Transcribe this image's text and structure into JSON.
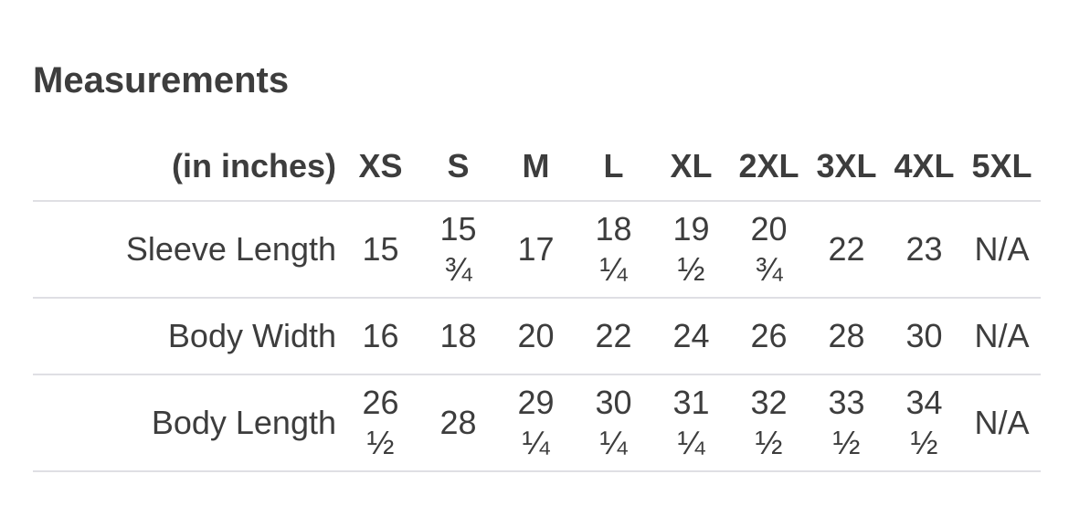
{
  "title": "Measurements",
  "table": {
    "unit_label": "(in inches)",
    "columns": [
      "XS",
      "S",
      "M",
      "L",
      "XL",
      "2XL",
      "3XL",
      "4XL",
      "5XL"
    ],
    "rows": [
      {
        "label": "Sleeve Length",
        "values": [
          "15",
          "15 ¾",
          "17",
          "18 ¼",
          "19 ½",
          "20 ¾",
          "22",
          "23",
          "N/A"
        ]
      },
      {
        "label": "Body Width",
        "values": [
          "16",
          "18",
          "20",
          "22",
          "24",
          "26",
          "28",
          "30",
          "N/A"
        ]
      },
      {
        "label": "Body Length",
        "values": [
          "26 ½",
          "28",
          "29 ¼",
          "30 ¼",
          "31 ¼",
          "32 ½",
          "33 ½",
          "34 ½",
          "N/A"
        ]
      }
    ]
  },
  "colors": {
    "text": "#3d3d3d",
    "divider": "#dfdfe4",
    "background": "#ffffff"
  }
}
